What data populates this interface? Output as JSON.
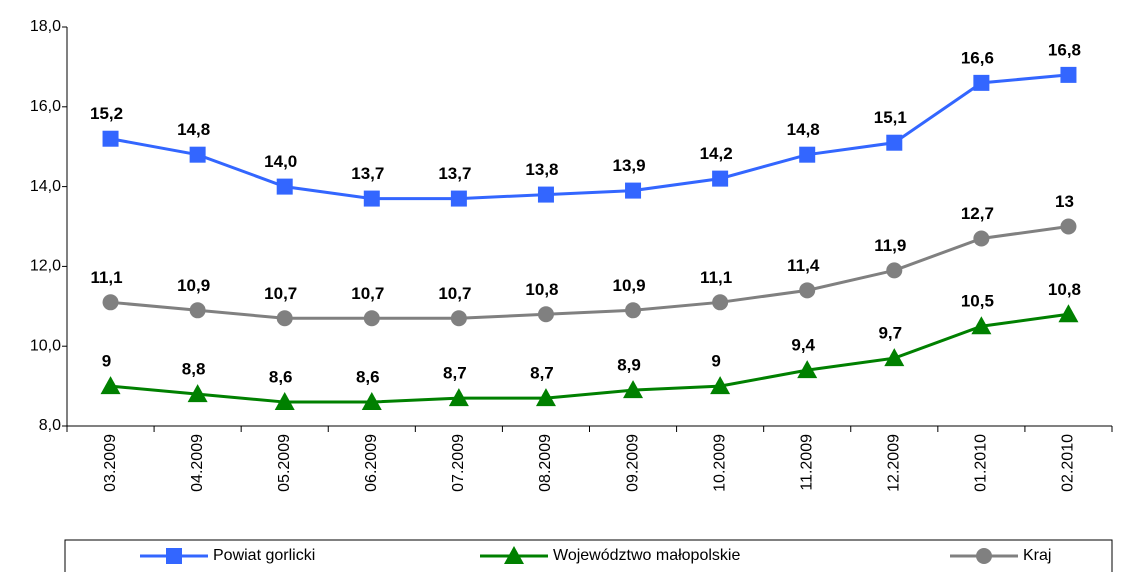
{
  "chart_data": {
    "type": "line",
    "categories": [
      "03.2009",
      "04.2009",
      "05.2009",
      "06.2009",
      "07.2009",
      "08.2009",
      "09.2009",
      "10.2009",
      "11.2009",
      "12.2009",
      "01.2010",
      "02.2010"
    ],
    "series": [
      {
        "name": "Powiat gorlicki",
        "color": "#3366ff",
        "marker": "square",
        "values": [
          15.2,
          14.8,
          14.0,
          13.7,
          13.7,
          13.8,
          13.9,
          14.2,
          14.8,
          15.1,
          16.6,
          16.8
        ],
        "value_labels": [
          "15,2",
          "14,8",
          "14,0",
          "13,7",
          "13,7",
          "13,8",
          "13,9",
          "14,2",
          "14,8",
          "15,1",
          "16,6",
          "16,8"
        ]
      },
      {
        "name": "Województwo małopolskie",
        "color": "#008000",
        "marker": "triangle",
        "values": [
          9,
          8.8,
          8.6,
          8.6,
          8.7,
          8.7,
          8.9,
          9,
          9.4,
          9.7,
          10.5,
          10.8
        ],
        "value_labels": [
          "9",
          "8,8",
          "8,6",
          "8,6",
          "8,7",
          "8,7",
          "8,9",
          "9",
          "9,4",
          "9,7",
          "10,5",
          "10,8"
        ]
      },
      {
        "name": "Kraj",
        "color": "#808080",
        "marker": "circle",
        "values": [
          11.1,
          10.9,
          10.7,
          10.7,
          10.7,
          10.8,
          10.9,
          11.1,
          11.4,
          11.9,
          12.7,
          13
        ],
        "value_labels": [
          "11,1",
          "10,9",
          "10,7",
          "10,7",
          "10,7",
          "10,8",
          "10,9",
          "11,1",
          "11,4",
          "11,9",
          "12,7",
          "13"
        ]
      }
    ],
    "ylim": [
      8,
      18
    ],
    "yticks": [
      {
        "value": 8,
        "label": "8,0"
      },
      {
        "value": 10,
        "label": "10,0"
      },
      {
        "value": 12,
        "label": "12,0"
      },
      {
        "value": 14,
        "label": "14,0"
      },
      {
        "value": 16,
        "label": "16,0"
      },
      {
        "value": 18,
        "label": "18,0"
      }
    ],
    "grid": false,
    "legend": "bottom"
  }
}
